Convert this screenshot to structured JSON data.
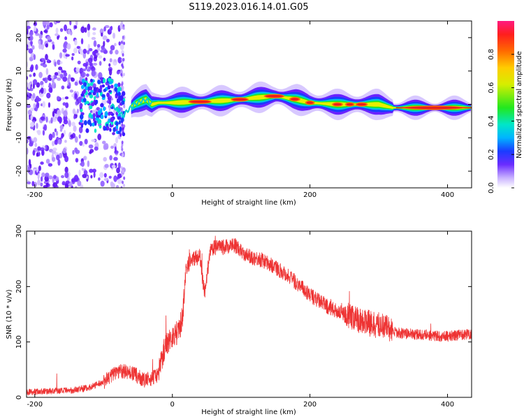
{
  "figure": {
    "title": "S119.2023.016.14.01.G05"
  },
  "chart_data": [
    {
      "type": "heatmap",
      "xlabel": "Height of straight line (km)",
      "ylabel": "Frequency (Hz)",
      "xlim": [
        -212,
        435
      ],
      "ylim": [
        -25,
        25
      ],
      "xticks": [
        -200,
        0,
        200,
        400
      ],
      "yticks": [
        -20,
        -10,
        0,
        10,
        20
      ],
      "grid": false,
      "ridge": {
        "x": [
          -90,
          -80,
          -72,
          -66,
          -55,
          -45,
          -38,
          -30,
          -20,
          0,
          40,
          80,
          100,
          120,
          150,
          165,
          180,
          200,
          240,
          260,
          300,
          320,
          360,
          400,
          435
        ],
        "y": [
          0.0,
          -1.5,
          -3.5,
          -2.0,
          0.0,
          1.0,
          1.5,
          0.0,
          0.5,
          0.5,
          0.8,
          1.2,
          1.5,
          2.0,
          2.5,
          2.0,
          1.5,
          0.5,
          0.0,
          0.0,
          0.0,
          -1.0,
          -1.0,
          -1.0,
          -1.0
        ]
      },
      "colorbar": {
        "label": "Normalized spectral amplitude",
        "range": [
          0,
          1
        ],
        "ticks": [
          0.0,
          0.2,
          0.4,
          0.6,
          0.8
        ]
      }
    },
    {
      "type": "line",
      "xlabel": "Height of straight line (km)",
      "ylabel": "SNR (10 * v/v)",
      "xlim": [
        -212,
        435
      ],
      "ylim": [
        0,
        300
      ],
      "xticks": [
        -200,
        0,
        200,
        400
      ],
      "yticks": [
        0,
        100,
        200,
        300
      ],
      "grid": false,
      "color": "#ee3333",
      "series": [
        {
          "x": [
            -212,
            -150,
            -120,
            -100,
            -80,
            -60,
            -40,
            -30,
            -22,
            -10,
            0,
            10,
            15,
            20,
            25,
            30,
            40,
            45,
            48,
            52,
            55,
            60,
            70,
            90,
            100,
            110,
            130,
            150,
            170,
            200,
            230,
            260,
            290,
            300,
            310,
            320,
            340,
            370,
            400,
            435
          ],
          "y": [
            10,
            12,
            18,
            28,
            48,
            45,
            30,
            35,
            40,
            95,
            110,
            120,
            150,
            225,
            248,
            250,
            255,
            200,
            190,
            235,
            262,
            270,
            270,
            275,
            265,
            255,
            248,
            235,
            218,
            185,
            160,
            145,
            132,
            130,
            130,
            118,
            115,
            112,
            110,
            115
          ]
        }
      ]
    }
  ]
}
